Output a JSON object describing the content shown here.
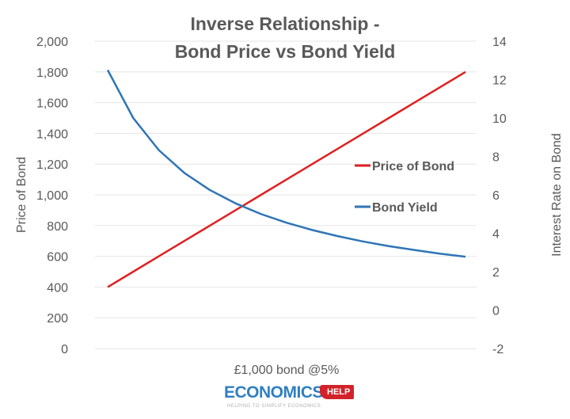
{
  "chart_data": {
    "type": "line",
    "title": [
      "Inverse Relationship -",
      "Bond Price vs Bond Yield"
    ],
    "xlabel": "£1,000 bond @5%",
    "ylabel_left": "Price of Bond",
    "ylabel_right": "Interest Rate on Bond",
    "ylim_left": [
      0,
      2000
    ],
    "ylim_right": [
      -2,
      14
    ],
    "yticks_left": [
      "0",
      "200",
      "400",
      "600",
      "800",
      "1,000",
      "1,200",
      "1,400",
      "1,600",
      "1,800",
      "2,000"
    ],
    "yticks_right": [
      "-2",
      "0",
      "2",
      "4",
      "6",
      "8",
      "10",
      "12",
      "14"
    ],
    "grid": true,
    "legend_placement": "right",
    "series": [
      {
        "name": "Price of Bond",
        "axis": "left",
        "color": "#e02020",
        "values": [
          400,
          500,
          600,
          700,
          800,
          900,
          1000,
          1100,
          1200,
          1300,
          1400,
          1500,
          1600,
          1700,
          1800
        ]
      },
      {
        "name": "Bond Yield",
        "axis": "right",
        "color": "#2e75b6",
        "values": [
          12.5,
          10,
          8.33,
          7.14,
          6.25,
          5.56,
          5,
          4.55,
          4.17,
          3.85,
          3.57,
          3.33,
          3.13,
          2.94,
          2.78
        ]
      }
    ]
  },
  "logo": {
    "brand": "ECONOMICS",
    "badge": "HELP",
    "tagline": "HELPING TO SIMPLIFY ECONOMICS"
  }
}
